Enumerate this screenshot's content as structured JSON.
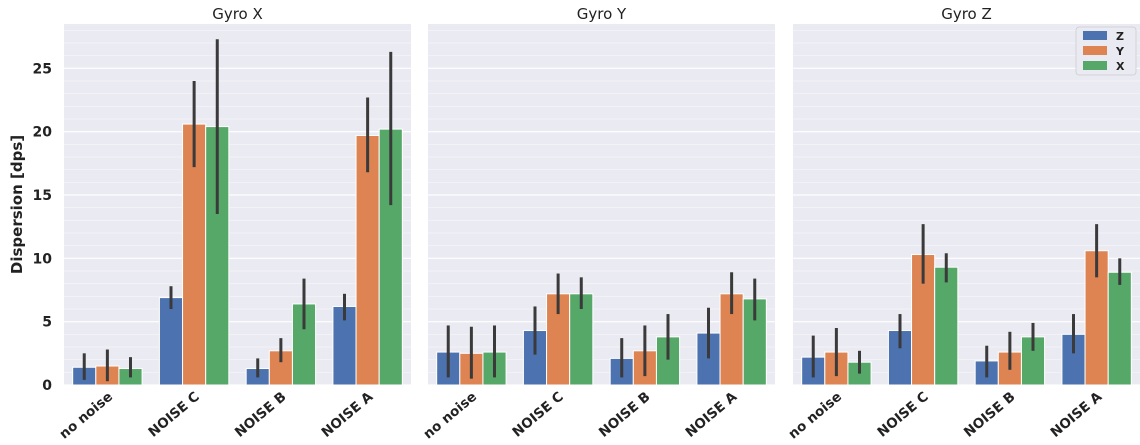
{
  "chart_data": {
    "type": "bar",
    "ylabel": "Dispersion [dps]",
    "ylim": [
      0,
      28.5
    ],
    "yticks": [
      0,
      5,
      10,
      15,
      20,
      25
    ],
    "grid": true,
    "legend": {
      "placement": "top-right",
      "entries": [
        "Z",
        "Y",
        "X"
      ]
    },
    "colors": {
      "Z": "#4c72b0",
      "Y": "#dd8452",
      "X": "#55a868",
      "panel_bg": "#eaeaf2",
      "grid": "#ffffff",
      "error": "#3a3a3a"
    },
    "categories": [
      "no noise",
      "NOISE C",
      "NOISE B",
      "NOISE A"
    ],
    "panels": [
      {
        "title": "Gyro X",
        "series": [
          {
            "name": "Z",
            "values": [
              1.4,
              6.9,
              1.3,
              6.2
            ],
            "err_low": [
              0.4,
              6.0,
              0.6,
              5.1
            ],
            "err_high": [
              2.5,
              7.8,
              2.1,
              7.2
            ]
          },
          {
            "name": "Y",
            "values": [
              1.5,
              20.6,
              2.7,
              19.7
            ],
            "err_low": [
              0.3,
              17.2,
              1.8,
              16.8
            ],
            "err_high": [
              2.8,
              24.0,
              3.7,
              22.7
            ]
          },
          {
            "name": "X",
            "values": [
              1.3,
              20.4,
              6.4,
              20.2
            ],
            "err_low": [
              0.6,
              13.5,
              4.4,
              14.2
            ],
            "err_high": [
              2.2,
              27.3,
              8.4,
              26.3
            ]
          }
        ]
      },
      {
        "title": "Gyro Y",
        "series": [
          {
            "name": "Z",
            "values": [
              2.6,
              4.3,
              2.1,
              4.1
            ],
            "err_low": [
              0.6,
              2.4,
              0.6,
              2.1
            ],
            "err_high": [
              4.7,
              6.2,
              3.7,
              6.1
            ]
          },
          {
            "name": "Y",
            "values": [
              2.5,
              7.2,
              2.7,
              7.2
            ],
            "err_low": [
              0.5,
              5.6,
              0.7,
              5.6
            ],
            "err_high": [
              4.6,
              8.8,
              4.7,
              8.9
            ]
          },
          {
            "name": "X",
            "values": [
              2.6,
              7.2,
              3.8,
              6.8
            ],
            "err_low": [
              0.6,
              6.0,
              2.0,
              5.1
            ],
            "err_high": [
              4.7,
              8.5,
              5.6,
              8.4
            ]
          }
        ]
      },
      {
        "title": "Gyro Z",
        "series": [
          {
            "name": "Z",
            "values": [
              2.2,
              4.3,
              1.9,
              4.0
            ],
            "err_low": [
              0.6,
              2.9,
              0.6,
              2.5
            ],
            "err_high": [
              3.9,
              5.6,
              3.1,
              5.6
            ]
          },
          {
            "name": "Y",
            "values": [
              2.6,
              10.3,
              2.6,
              10.6
            ],
            "err_low": [
              0.7,
              8.0,
              1.2,
              8.5
            ],
            "err_high": [
              4.5,
              12.7,
              4.2,
              12.7
            ]
          },
          {
            "name": "X",
            "values": [
              1.8,
              9.3,
              3.8,
              8.9
            ],
            "err_low": [
              0.9,
              8.1,
              2.7,
              7.9
            ],
            "err_high": [
              2.7,
              10.4,
              4.9,
              10.0
            ]
          }
        ]
      }
    ]
  }
}
